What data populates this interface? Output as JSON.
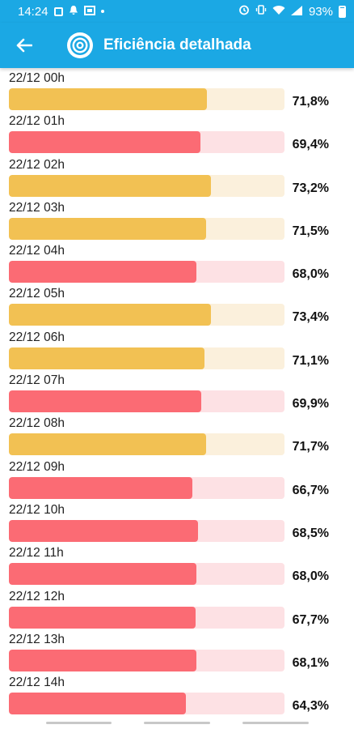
{
  "status_bar": {
    "time": "14:24",
    "battery": "93%",
    "icons": [
      "image-icon",
      "notification-icon",
      "cast-icon",
      "dot-icon",
      "alarm-icon",
      "vibrate-icon",
      "wifi-icon",
      "signal-icon",
      "battery-icon"
    ]
  },
  "app_bar": {
    "title": "Eficiência detalhada",
    "back_icon": "arrow-left-icon",
    "logo_icon": "target-logo-icon"
  },
  "colors": {
    "header": "#1ba8e4",
    "good_fill": "#f2c153",
    "good_track": "#fbf0dc",
    "bad_fill": "#fb6b74",
    "bad_track": "#fde1e4"
  },
  "rows": [
    {
      "label": "22/12 00h",
      "value": "71,8%",
      "percent": 71.8,
      "status": "good"
    },
    {
      "label": "22/12 01h",
      "value": "69,4%",
      "percent": 69.4,
      "status": "bad"
    },
    {
      "label": "22/12 02h",
      "value": "73,2%",
      "percent": 73.2,
      "status": "good"
    },
    {
      "label": "22/12 03h",
      "value": "71,5%",
      "percent": 71.5,
      "status": "good"
    },
    {
      "label": "22/12 04h",
      "value": "68,0%",
      "percent": 68.0,
      "status": "bad"
    },
    {
      "label": "22/12 05h",
      "value": "73,4%",
      "percent": 73.4,
      "status": "good"
    },
    {
      "label": "22/12 06h",
      "value": "71,1%",
      "percent": 71.1,
      "status": "good"
    },
    {
      "label": "22/12 07h",
      "value": "69,9%",
      "percent": 69.9,
      "status": "bad"
    },
    {
      "label": "22/12 08h",
      "value": "71,7%",
      "percent": 71.7,
      "status": "good"
    },
    {
      "label": "22/12 09h",
      "value": "66,7%",
      "percent": 66.7,
      "status": "bad"
    },
    {
      "label": "22/12 10h",
      "value": "68,5%",
      "percent": 68.5,
      "status": "bad"
    },
    {
      "label": "22/12 11h",
      "value": "68,0%",
      "percent": 68.0,
      "status": "bad"
    },
    {
      "label": "22/12 12h",
      "value": "67,7%",
      "percent": 67.7,
      "status": "bad"
    },
    {
      "label": "22/12 13h",
      "value": "68,1%",
      "percent": 68.1,
      "status": "bad"
    },
    {
      "label": "22/12 14h",
      "value": "64,3%",
      "percent": 64.3,
      "status": "bad"
    }
  ]
}
